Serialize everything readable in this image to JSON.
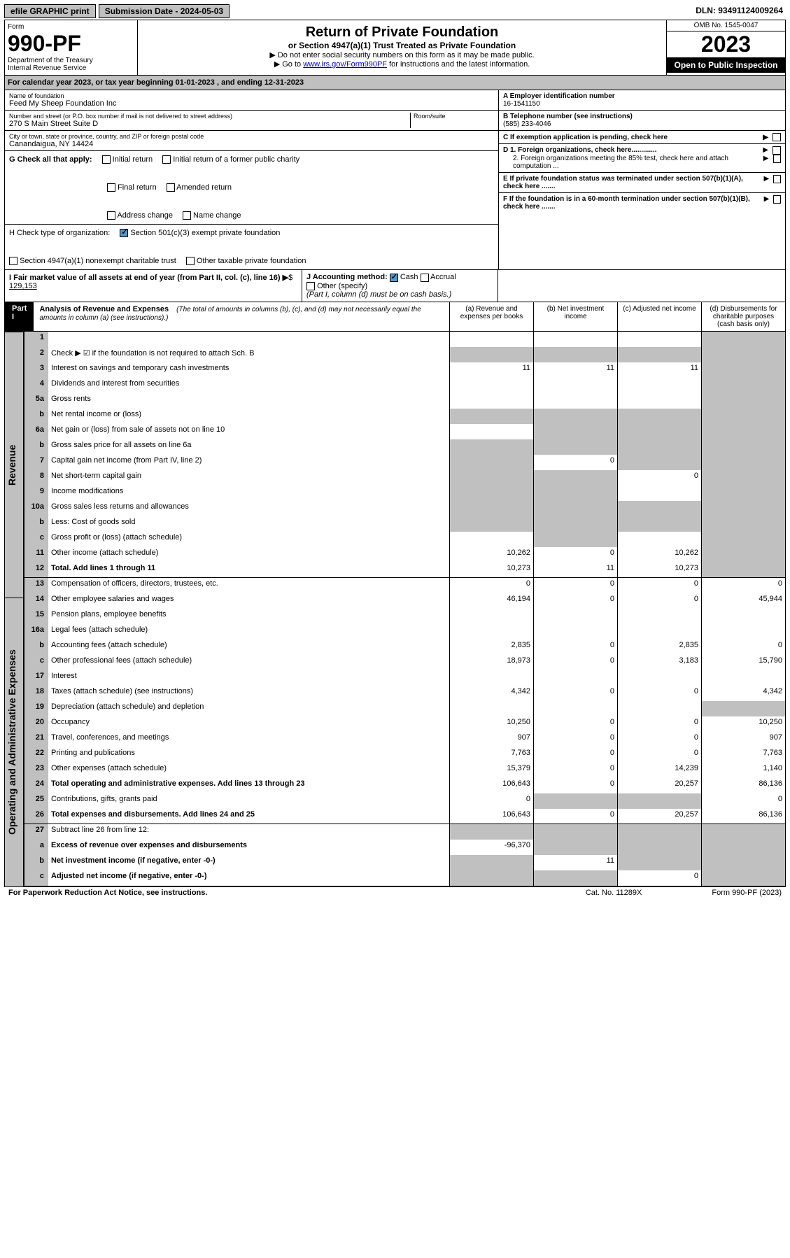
{
  "topbar": {
    "efile": "efile GRAPHIC print",
    "submission": "Submission Date - 2024-05-03",
    "dln": "DLN: 93491124009264"
  },
  "header": {
    "form_label": "Form",
    "form_num": "990-PF",
    "dept1": "Department of the Treasury",
    "dept2": "Internal Revenue Service",
    "title": "Return of Private Foundation",
    "subtitle": "or Section 4947(a)(1) Trust Treated as Private Foundation",
    "instr1": "▶ Do not enter social security numbers on this form as it may be made public.",
    "instr2_pre": "▶ Go to ",
    "instr2_link": "www.irs.gov/Form990PF",
    "instr2_post": " for instructions and the latest information.",
    "omb": "OMB No. 1545-0047",
    "year": "2023",
    "open_public": "Open to Public Inspection"
  },
  "cal_year": "For calendar year 2023, or tax year beginning 01-01-2023                        , and ending 12-31-2023",
  "foundation": {
    "name_label": "Name of foundation",
    "name": "Feed My Sheep Foundation Inc",
    "street_label": "Number and street (or P.O. box number if mail is not delivered to street address)",
    "street": "270 S Main Street Suite D",
    "room_label": "Room/suite",
    "city_label": "City or town, state or province, country, and ZIP or foreign postal code",
    "city": "Canandaigua, NY  14424",
    "ein_label": "A Employer identification number",
    "ein": "16-1541150",
    "phone_label": "B Telephone number (see instructions)",
    "phone": "(585) 233-4046",
    "c_label": "C If exemption application is pending, check here",
    "d1": "D 1. Foreign organizations, check here.............",
    "d2": "2. Foreign organizations meeting the 85% test, check here and attach computation ...",
    "e_label": "E  If private foundation status was terminated under section 507(b)(1)(A), check here .......",
    "f_label": "F  If the foundation is in a 60-month termination under section 507(b)(1)(B), check here ......."
  },
  "g": {
    "label": "G Check all that apply:",
    "initial": "Initial return",
    "initial_former": "Initial return of a former public charity",
    "final": "Final return",
    "amended": "Amended return",
    "address": "Address change",
    "name_change": "Name change"
  },
  "h": {
    "label": "H Check type of organization:",
    "opt1": "Section 501(c)(3) exempt private foundation",
    "opt2": "Section 4947(a)(1) nonexempt charitable trust",
    "opt3": "Other taxable private foundation"
  },
  "i": {
    "label": "I Fair market value of all assets at end of year (from Part II, col. (c), line 16)",
    "value": "129,153"
  },
  "j": {
    "label": "J Accounting method:",
    "cash": "Cash",
    "accrual": "Accrual",
    "other": "Other (specify)",
    "note": "(Part I, column (d) must be on cash basis.)"
  },
  "part1": {
    "label": "Part I",
    "title": "Analysis of Revenue and Expenses",
    "note": "(The total of amounts in columns (b), (c), and (d) may not necessarily equal the amounts in column (a) (see instructions).)",
    "col_a": "(a)   Revenue and expenses per books",
    "col_b": "(b)   Net investment income",
    "col_c": "(c)   Adjusted net income",
    "col_d": "(d)   Disbursements for charitable purposes (cash basis only)"
  },
  "sides": {
    "revenue": "Revenue",
    "expenses": "Operating and Administrative Expenses"
  },
  "rows": [
    {
      "n": "1",
      "d": "",
      "a": "",
      "b": "",
      "c": "",
      "sd": true
    },
    {
      "n": "2",
      "d": "Check ▶ ☑ if the foundation is not required to attach Sch. B",
      "sd": true,
      "sa": true,
      "sb": true,
      "sc": true
    },
    {
      "n": "3",
      "d": "Interest on savings and temporary cash investments",
      "a": "11",
      "b": "11",
      "c": "11",
      "sd": true
    },
    {
      "n": "4",
      "d": "Dividends and interest from securities",
      "sd": true
    },
    {
      "n": "5a",
      "d": "Gross rents",
      "sd": true
    },
    {
      "n": "b",
      "d": "Net rental income or (loss)",
      "sa": true,
      "sb": true,
      "sc": true,
      "sd": true
    },
    {
      "n": "6a",
      "d": "Net gain or (loss) from sale of assets not on line 10",
      "sb": true,
      "sc": true,
      "sd": true
    },
    {
      "n": "b",
      "d": "Gross sales price for all assets on line 6a",
      "sa": true,
      "sb": true,
      "sc": true,
      "sd": true
    },
    {
      "n": "7",
      "d": "Capital gain net income (from Part IV, line 2)",
      "sa": true,
      "b": "0",
      "sc": true,
      "sd": true
    },
    {
      "n": "8",
      "d": "Net short-term capital gain",
      "sa": true,
      "sb": true,
      "c": "0",
      "sd": true
    },
    {
      "n": "9",
      "d": "Income modifications",
      "sa": true,
      "sb": true,
      "sd": true
    },
    {
      "n": "10a",
      "d": "Gross sales less returns and allowances",
      "sa": true,
      "sb": true,
      "sc": true,
      "sd": true
    },
    {
      "n": "b",
      "d": "Less: Cost of goods sold",
      "sa": true,
      "sb": true,
      "sc": true,
      "sd": true
    },
    {
      "n": "c",
      "d": "Gross profit or (loss) (attach schedule)",
      "sb": true,
      "sd": true
    },
    {
      "n": "11",
      "d": "Other income (attach schedule)",
      "a": "10,262",
      "b": "0",
      "c": "10,262",
      "sd": true
    },
    {
      "n": "12",
      "d": "Total. Add lines 1 through 11",
      "bold": true,
      "a": "10,273",
      "b": "11",
      "c": "10,273",
      "sd": true,
      "brk": true
    },
    {
      "n": "13",
      "d": "Compensation of officers, directors, trustees, etc.",
      "a": "0",
      "b": "0",
      "c": "0",
      "dd": "0"
    },
    {
      "n": "14",
      "d": "Other employee salaries and wages",
      "a": "46,194",
      "b": "0",
      "c": "0",
      "dd": "45,944"
    },
    {
      "n": "15",
      "d": "Pension plans, employee benefits"
    },
    {
      "n": "16a",
      "d": "Legal fees (attach schedule)"
    },
    {
      "n": "b",
      "d": "Accounting fees (attach schedule)",
      "a": "2,835",
      "b": "0",
      "c": "2,835",
      "dd": "0"
    },
    {
      "n": "c",
      "d": "Other professional fees (attach schedule)",
      "a": "18,973",
      "b": "0",
      "c": "3,183",
      "dd": "15,790"
    },
    {
      "n": "17",
      "d": "Interest"
    },
    {
      "n": "18",
      "d": "Taxes (attach schedule) (see instructions)",
      "a": "4,342",
      "b": "0",
      "c": "0",
      "dd": "4,342"
    },
    {
      "n": "19",
      "d": "Depreciation (attach schedule) and depletion",
      "sd": true
    },
    {
      "n": "20",
      "d": "Occupancy",
      "a": "10,250",
      "b": "0",
      "c": "0",
      "dd": "10,250"
    },
    {
      "n": "21",
      "d": "Travel, conferences, and meetings",
      "a": "907",
      "b": "0",
      "c": "0",
      "dd": "907"
    },
    {
      "n": "22",
      "d": "Printing and publications",
      "a": "7,763",
      "b": "0",
      "c": "0",
      "dd": "7,763"
    },
    {
      "n": "23",
      "d": "Other expenses (attach schedule)",
      "a": "15,379",
      "b": "0",
      "c": "14,239",
      "dd": "1,140"
    },
    {
      "n": "24",
      "d": "Total operating and administrative expenses. Add lines 13 through 23",
      "bold": true,
      "a": "106,643",
      "b": "0",
      "c": "20,257",
      "dd": "86,136"
    },
    {
      "n": "25",
      "d": "Contributions, gifts, grants paid",
      "a": "0",
      "sb": true,
      "sc": true,
      "dd": "0"
    },
    {
      "n": "26",
      "d": "Total expenses and disbursements. Add lines 24 and 25",
      "bold": true,
      "a": "106,643",
      "b": "0",
      "c": "20,257",
      "dd": "86,136",
      "brk": true
    },
    {
      "n": "27",
      "d": "Subtract line 26 from line 12:",
      "sa": true,
      "sb": true,
      "sc": true,
      "sd": true
    },
    {
      "n": "a",
      "d": "Excess of revenue over expenses and disbursements",
      "bold": true,
      "a": "-96,370",
      "sb": true,
      "sc": true,
      "sd": true
    },
    {
      "n": "b",
      "d": "Net investment income (if negative, enter -0-)",
      "bold": true,
      "sa": true,
      "b": "11",
      "sc": true,
      "sd": true
    },
    {
      "n": "c",
      "d": "Adjusted net income (if negative, enter -0-)",
      "bold": true,
      "sa": true,
      "sb": true,
      "c": "0",
      "sd": true
    }
  ],
  "footer": {
    "left": "For Paperwork Reduction Act Notice, see instructions.",
    "mid": "Cat. No. 11289X",
    "right": "Form 990-PF (2023)"
  },
  "colors": {
    "shaded": "#c0c0c0",
    "black": "#000000",
    "link": "#0000cc",
    "check": "#5599cc"
  }
}
